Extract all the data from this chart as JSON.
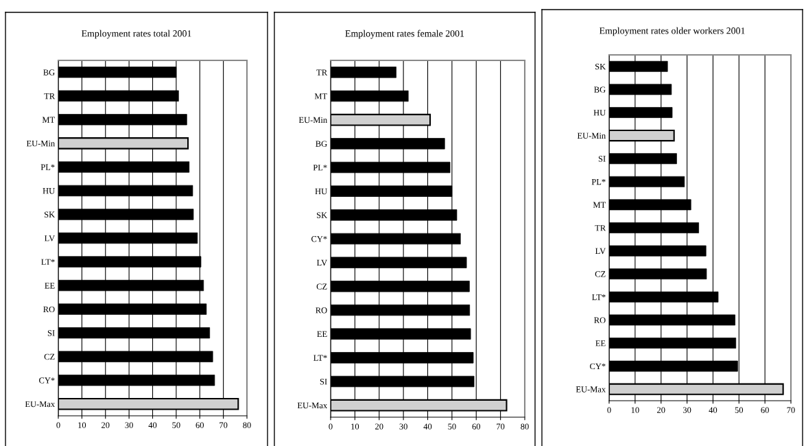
{
  "chart_data": [
    {
      "type": "bar",
      "orientation": "horizontal",
      "title": "Employment rates total 2001",
      "grid": "x",
      "categories": [
        "BG",
        "TR",
        "MT",
        "EU-Min",
        "PL*",
        "HU",
        "SK",
        "LV",
        "LT*",
        "EE",
        "RO",
        "SI",
        "CZ",
        "CY*",
        "EU-Max"
      ],
      "values": [
        50,
        51,
        54.5,
        55,
        55.5,
        57,
        57.3,
        59,
        60.5,
        61.6,
        62.8,
        64.2,
        65.5,
        66.3,
        76.3
      ],
      "colors": [
        "#000000",
        "#000000",
        "#000000",
        "#d0d0d0",
        "#000000",
        "#000000",
        "#000000",
        "#000000",
        "#000000",
        "#000000",
        "#000000",
        "#000000",
        "#000000",
        "#000000",
        "#d0d0d0"
      ],
      "xlim": [
        0,
        80
      ],
      "xticks": [
        0,
        10,
        20,
        30,
        40,
        50,
        60,
        70,
        80
      ]
    },
    {
      "type": "bar",
      "orientation": "horizontal",
      "title": "Employment rates female 2001",
      "grid": "x",
      "categories": [
        "TR",
        "MT",
        "EU-Min",
        "BG",
        "PL*",
        "HU",
        "SK",
        "CY*",
        "LV",
        "CZ",
        "RO",
        "EE",
        "LT*",
        "SI",
        "EU-Max"
      ],
      "values": [
        27,
        32,
        41,
        47,
        49.2,
        50,
        52,
        53.5,
        56,
        57.2,
        57.3,
        57.7,
        58.8,
        59.1,
        72.5
      ],
      "colors": [
        "#000000",
        "#000000",
        "#d0d0d0",
        "#000000",
        "#000000",
        "#000000",
        "#000000",
        "#000000",
        "#000000",
        "#000000",
        "#000000",
        "#000000",
        "#000000",
        "#000000",
        "#d0d0d0"
      ],
      "xlim": [
        0,
        80
      ],
      "xticks": [
        0,
        10,
        20,
        30,
        40,
        50,
        60,
        70,
        80
      ]
    },
    {
      "type": "bar",
      "orientation": "horizontal",
      "title": "Employment rates older workers 2001",
      "grid": "x",
      "categories": [
        "SK",
        "BG",
        "HU",
        "EU-Min",
        "SI",
        "PL*",
        "MT",
        "TR",
        "LV",
        "CZ",
        "LT*",
        "RO",
        "EE",
        "CY*",
        "EU-Max"
      ],
      "values": [
        22.5,
        24,
        24.3,
        25,
        26,
        29,
        31.5,
        34.5,
        37.3,
        37.5,
        42,
        48.5,
        48.8,
        49.5,
        67
      ],
      "colors": [
        "#000000",
        "#000000",
        "#000000",
        "#d0d0d0",
        "#000000",
        "#000000",
        "#000000",
        "#000000",
        "#000000",
        "#000000",
        "#000000",
        "#000000",
        "#000000",
        "#000000",
        "#d0d0d0"
      ],
      "xlim": [
        0,
        70
      ],
      "xticks": [
        0,
        10,
        20,
        30,
        40,
        50,
        60,
        70
      ]
    }
  ]
}
